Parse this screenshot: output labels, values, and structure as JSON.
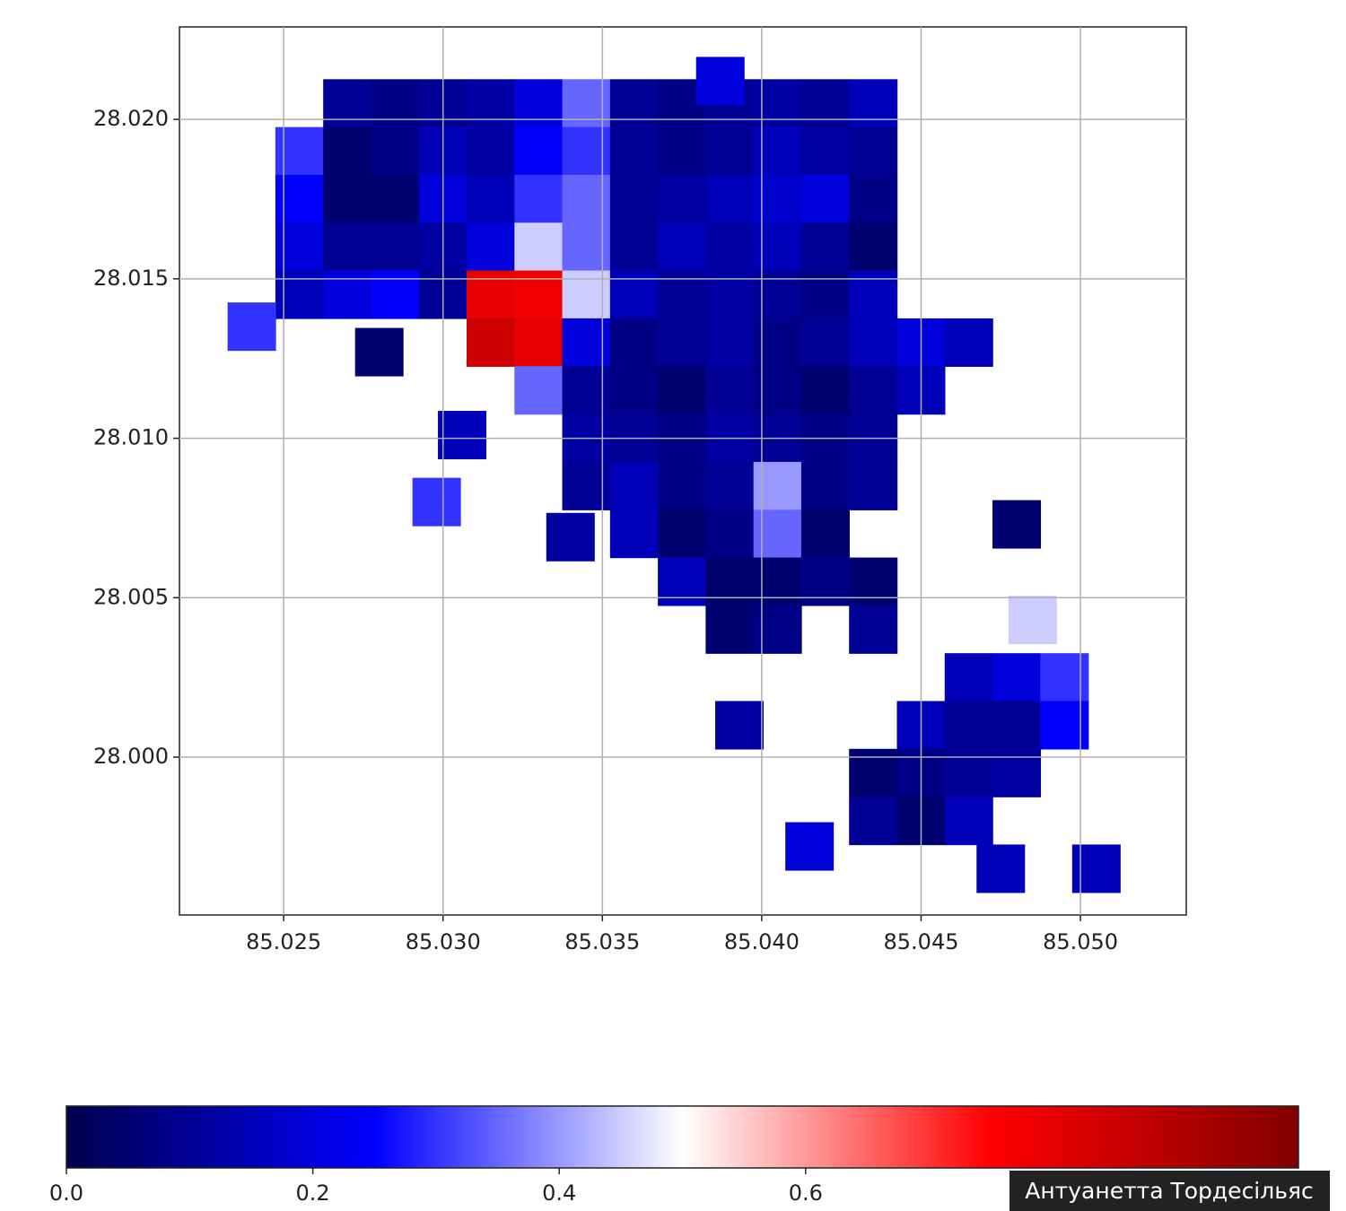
{
  "chart_data": {
    "type": "scatter",
    "colormap": "seismic",
    "clim": [
      0,
      1
    ],
    "grid": true,
    "xlim": [
      85.02173,
      85.05332
    ],
    "ylim": [
      27.99505,
      28.0229
    ],
    "xticks": [
      {
        "value": 85.025,
        "label": "85.025"
      },
      {
        "value": 85.03,
        "label": "85.030"
      },
      {
        "value": 85.035,
        "label": "85.035"
      },
      {
        "value": 85.04,
        "label": "85.040"
      },
      {
        "value": 85.045,
        "label": "85.045"
      },
      {
        "value": 85.05,
        "label": "85.050"
      }
    ],
    "yticks": [
      {
        "value": 28.02,
        "label": "28.020"
      },
      {
        "value": 28.015,
        "label": "28.015"
      },
      {
        "value": 28.01,
        "label": "28.010"
      },
      {
        "value": 28.005,
        "label": "28.005"
      },
      {
        "value": 28.0,
        "label": "28.000"
      }
    ],
    "colorbar_ticks": [
      {
        "value": 0,
        "label": "0.0"
      },
      {
        "value": 0.2,
        "label": "0.2"
      },
      {
        "value": 0.4,
        "label": "0.4"
      },
      {
        "value": 0.6,
        "label": "0.6"
      }
    ],
    "x": [
      85.027,
      85.0285,
      85.03,
      85.0315,
      85.033,
      85.0345,
      85.036,
      85.0375,
      85.039,
      85.0405,
      85.042,
      85.0435,
      85.0255,
      85.027,
      85.0285,
      85.03,
      85.0315,
      85.033,
      85.0345,
      85.036,
      85.0375,
      85.039,
      85.0405,
      85.042,
      85.0435,
      85.0255,
      85.027,
      85.0285,
      85.03,
      85.0315,
      85.033,
      85.0345,
      85.036,
      85.0375,
      85.039,
      85.0405,
      85.042,
      85.0435,
      85.0255,
      85.027,
      85.0285,
      85.03,
      85.0315,
      85.033,
      85.0345,
      85.036,
      85.0375,
      85.039,
      85.0405,
      85.042,
      85.0435,
      85.0255,
      85.027,
      85.0285,
      85.03,
      85.0315,
      85.033,
      85.0345,
      85.036,
      85.0375,
      85.039,
      85.0405,
      85.042,
      85.0435,
      85.0315,
      85.033,
      85.0345,
      85.036,
      85.0375,
      85.039,
      85.0405,
      85.042,
      85.0435,
      85.045,
      85.0465,
      85.033,
      85.0345,
      85.036,
      85.0375,
      85.039,
      85.0405,
      85.042,
      85.0435,
      85.045,
      85.0345,
      85.036,
      85.0375,
      85.039,
      85.0405,
      85.042,
      85.0435,
      85.0345,
      85.036,
      85.0375,
      85.039,
      85.0405,
      85.042,
      85.0435,
      85.036,
      85.0375,
      85.039,
      85.0405,
      85.042,
      85.0375,
      85.039,
      85.0405,
      85.042,
      85.0435,
      85.039,
      85.0405,
      85.0435,
      85.0465,
      85.048,
      85.0495,
      85.045,
      85.0465,
      85.048,
      85.0495,
      85.0435,
      85.045,
      85.0465,
      85.048,
      85.0435,
      85.045,
      85.0465,
      85.0475,
      85.0505,
      85.024,
      85.0306,
      85.0298,
      85.034,
      85.048,
      85.0485,
      85.0393,
      85.0415,
      85.028,
      85.0387
    ],
    "y": [
      28.0205,
      28.0205,
      28.0205,
      28.0205,
      28.0205,
      28.0205,
      28.0205,
      28.0205,
      28.0205,
      28.0205,
      28.0205,
      28.0205,
      28.019,
      28.019,
      28.019,
      28.019,
      28.019,
      28.019,
      28.019,
      28.019,
      28.019,
      28.019,
      28.019,
      28.019,
      28.019,
      28.0175,
      28.0175,
      28.0175,
      28.0175,
      28.0175,
      28.0175,
      28.0175,
      28.0175,
      28.0175,
      28.0175,
      28.0175,
      28.0175,
      28.0175,
      28.016,
      28.016,
      28.016,
      28.016,
      28.016,
      28.016,
      28.016,
      28.016,
      28.016,
      28.016,
      28.016,
      28.016,
      28.016,
      28.0145,
      28.0145,
      28.0145,
      28.0145,
      28.0145,
      28.0145,
      28.0145,
      28.0145,
      28.0145,
      28.0145,
      28.0145,
      28.0145,
      28.0145,
      28.013,
      28.013,
      28.013,
      28.013,
      28.013,
      28.013,
      28.013,
      28.013,
      28.013,
      28.013,
      28.013,
      28.0115,
      28.0115,
      28.0115,
      28.0115,
      28.0115,
      28.0115,
      28.0115,
      28.0115,
      28.0115,
      28.01,
      28.01,
      28.01,
      28.01,
      28.01,
      28.01,
      28.01,
      28.0085,
      28.0085,
      28.0085,
      28.0085,
      28.0085,
      28.0085,
      28.0085,
      28.007,
      28.007,
      28.007,
      28.007,
      28.007,
      28.0055,
      28.0055,
      28.0055,
      28.0055,
      28.0055,
      28.004,
      28.004,
      28.004,
      28.0025,
      28.0025,
      28.0025,
      28.001,
      28.001,
      28.001,
      28.001,
      27.9995,
      27.9995,
      27.9995,
      27.9995,
      27.998,
      27.998,
      27.998,
      27.9965,
      27.9965,
      28.0135,
      28.0101,
      28.008,
      28.0069,
      28.0073,
      28.0043,
      28.001,
      27.9972,
      28.0127,
      28.0212
    ],
    "values": [
      0.1,
      0.08,
      0.1,
      0.12,
      0.2,
      0.35,
      0.1,
      0.08,
      0.1,
      0.12,
      0.1,
      0.15,
      0.3,
      0.05,
      0.08,
      0.15,
      0.12,
      0.25,
      0.3,
      0.1,
      0.08,
      0.1,
      0.15,
      0.12,
      0.1,
      0.25,
      0.05,
      0.05,
      0.2,
      0.15,
      0.3,
      0.35,
      0.1,
      0.12,
      0.15,
      0.18,
      0.2,
      0.08,
      0.2,
      0.1,
      0.1,
      0.12,
      0.2,
      0.45,
      0.35,
      0.1,
      0.15,
      0.12,
      0.15,
      0.1,
      0.05,
      0.15,
      0.2,
      0.25,
      0.1,
      0.8,
      0.78,
      0.45,
      0.15,
      0.1,
      0.12,
      0.1,
      0.08,
      0.15,
      0.85,
      0.8,
      0.2,
      0.08,
      0.1,
      0.12,
      0.08,
      0.1,
      0.15,
      0.2,
      0.15,
      0.35,
      0.1,
      0.08,
      0.05,
      0.1,
      0.08,
      0.05,
      0.1,
      0.15,
      0.12,
      0.1,
      0.08,
      0.12,
      0.1,
      0.08,
      0.1,
      0.1,
      0.15,
      0.08,
      0.1,
      0.4,
      0.08,
      0.1,
      0.15,
      0.05,
      0.08,
      0.35,
      0.05,
      0.15,
      0.05,
      0.05,
      0.08,
      0.05,
      0.05,
      0.08,
      0.1,
      0.15,
      0.2,
      0.3,
      0.15,
      0.1,
      0.1,
      0.25,
      0.05,
      0.08,
      0.1,
      0.12,
      0.1,
      0.05,
      0.15,
      0.15,
      0.15,
      0.3,
      0.15,
      0.3,
      0.12,
      0.05,
      0.45,
      0.12,
      0.2,
      0.05,
      0.2
    ]
  },
  "watermark": "Антуанетта Тордесільяс"
}
